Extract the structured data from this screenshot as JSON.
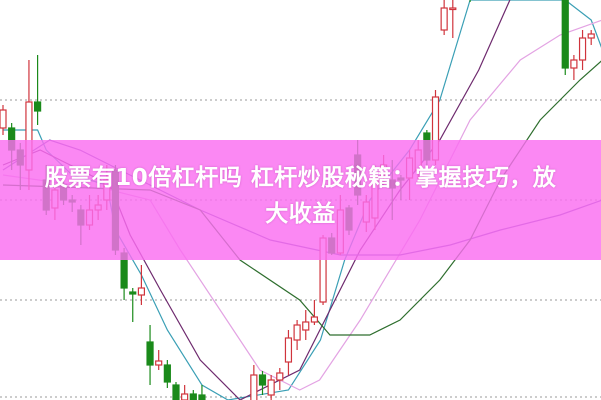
{
  "headline": {
    "line1": "股票有10倍杠杆吗 杠杆炒股秘籍：掌握技巧，放",
    "line2": "大收益"
  },
  "colors": {
    "up": "#d0343c",
    "down": "#1a8a1a",
    "banner": "#fa6ef0",
    "grid": "#999999"
  },
  "chart_data": {
    "type": "candlestick",
    "title": "",
    "xlabel": "",
    "ylabel": "",
    "ylim": [
      0,
      40
    ],
    "grid": true,
    "grid_levels": [
      10,
      20,
      30
    ],
    "candles": [
      [
        0,
        27.2,
        29.0,
        29.5,
        26.5
      ],
      [
        1,
        27.2,
        25.0,
        27.7,
        23.0
      ],
      [
        2,
        25.0,
        23.5,
        25.7,
        21.0
      ],
      [
        3,
        23.0,
        29.8,
        34.0,
        21.0
      ],
      [
        4,
        29.8,
        28.9,
        34.5,
        27.5
      ],
      [
        5,
        22.0,
        19.0,
        23.5,
        18.5
      ],
      [
        6,
        19.2,
        21.0,
        21.5,
        18.0
      ],
      [
        7,
        21.5,
        20.0,
        22.0,
        19.5
      ],
      [
        8,
        20.0,
        19.8,
        20.5,
        18.8
      ],
      [
        9,
        19.0,
        17.5,
        19.5,
        15.5
      ],
      [
        10,
        17.5,
        19.0,
        20.5,
        17.0
      ],
      [
        11,
        19.0,
        19.5,
        20.5,
        18.0
      ],
      [
        12,
        20.0,
        22.0,
        23.5,
        19.0
      ],
      [
        13,
        23.0,
        15.0,
        23.5,
        14.5
      ],
      [
        14,
        14.7,
        11.2,
        15.2,
        10.0
      ],
      [
        15,
        10.8,
        10.6,
        11.2,
        7.8
      ],
      [
        16,
        10.5,
        11.2,
        13.5,
        9.5
      ],
      [
        17,
        5.8,
        3.5,
        7.5,
        1.5
      ],
      [
        18,
        3.5,
        3.9,
        5.0,
        3.0
      ],
      [
        19,
        3.5,
        1.8,
        4.0,
        1.2
      ],
      [
        20,
        1.5,
        0.0,
        1.8,
        -1
      ],
      [
        21,
        0.0,
        0.6,
        1.5,
        -1
      ],
      [
        22,
        0.6,
        0.0,
        1.0,
        -1
      ],
      [
        23,
        0.5,
        -0.5,
        1.5,
        -1
      ],
      [
        29,
        -0.5,
        2.5,
        3.5,
        -1
      ],
      [
        30,
        2.5,
        1.5,
        2.9,
        0.5
      ],
      [
        31,
        0.5,
        2.0,
        2.5,
        0.0
      ],
      [
        32,
        2.0,
        2.7,
        3.2,
        1.0
      ],
      [
        33,
        3.8,
        6.2,
        7.0,
        2.5
      ],
      [
        34,
        6.0,
        7.5,
        8.0,
        5.0
      ],
      [
        35,
        7.0,
        7.8,
        9.0,
        6.0
      ],
      [
        36,
        7.8,
        8.3,
        10.0,
        7.5
      ],
      [
        37,
        9.8,
        16.2,
        16.5,
        9.5
      ],
      [
        38,
        16.2,
        14.7,
        16.7,
        14.5
      ],
      [
        39,
        14.7,
        19.0,
        20.5,
        14.5
      ],
      [
        40,
        19.2,
        17.0,
        19.5,
        16.5
      ],
      [
        41,
        24.5,
        20.5,
        26.0,
        19.5
      ],
      [
        42,
        17.8,
        19.8,
        20.5,
        16.8
      ],
      [
        43,
        18.2,
        22.2,
        23.5,
        17.0
      ],
      [
        44,
        22.5,
        23.5,
        24.5,
        21.5
      ],
      [
        45,
        22.0,
        21.2,
        24.0,
        18.0
      ],
      [
        46,
        22.2,
        22.0,
        22.5,
        20.0
      ],
      [
        47,
        22.2,
        24.2,
        25.0,
        20.0
      ],
      [
        48,
        23.0,
        25.0,
        26.0,
        22.0
      ],
      [
        49,
        26.7,
        24.0,
        27.0,
        23.0
      ],
      [
        50,
        24.0,
        30.3,
        31.0,
        23.5
      ],
      [
        51,
        37.0,
        39.2,
        40.5,
        36.5
      ],
      [
        52,
        39.2,
        39.2,
        40.5,
        36.2
      ],
      [
        54,
        41.0,
        40.5,
        41.5,
        39.8
      ],
      [
        57,
        41.0,
        40.6,
        41.5,
        40.0
      ],
      [
        65,
        40.5,
        33.2,
        41.0,
        32.5
      ],
      [
        66,
        33.2,
        34.0,
        34.5,
        32.0
      ],
      [
        67,
        34.0,
        36.2,
        37.0,
        33.0
      ],
      [
        68,
        36.2,
        36.6,
        37.0,
        35.5
      ]
    ],
    "moving_averages": [
      {
        "color": "#3a9fb5",
        "points": [
          [
            0,
            27
          ],
          [
            4,
            27
          ],
          [
            5,
            25
          ],
          [
            8,
            22.5
          ],
          [
            12,
            21.5
          ],
          [
            13,
            17
          ],
          [
            16,
            12.5
          ],
          [
            19,
            7
          ],
          [
            23,
            1.5
          ],
          [
            26,
            0
          ],
          [
            33,
            1
          ],
          [
            36.7,
            6
          ],
          [
            39.5,
            14
          ],
          [
            42.4,
            20
          ],
          [
            47,
            25
          ],
          [
            50.5,
            30
          ],
          [
            54,
            40
          ],
          [
            65,
            40
          ],
          [
            68,
            38
          ],
          [
            69.3,
            35
          ]
        ]
      },
      {
        "color": "#6e2a6e",
        "points": [
          [
            0,
            23.5
          ],
          [
            4.3,
            25
          ],
          [
            6.6,
            24
          ],
          [
            12.4,
            21.5
          ],
          [
            14.7,
            16.5
          ],
          [
            18.2,
            11
          ],
          [
            22.8,
            4
          ],
          [
            27.4,
            0
          ],
          [
            34.3,
            3
          ],
          [
            37.8,
            9
          ],
          [
            41.3,
            15
          ],
          [
            45.9,
            21
          ],
          [
            50.5,
            26
          ],
          [
            55,
            33
          ],
          [
            58.6,
            40
          ]
        ]
      },
      {
        "color": "#e3a3e3",
        "points": [
          [
            0,
            22.5
          ],
          [
            12.4,
            21
          ],
          [
            17,
            20
          ],
          [
            20.5,
            15
          ],
          [
            25.1,
            9
          ],
          [
            29.7,
            3
          ],
          [
            34.3,
            1
          ],
          [
            36.6,
            2
          ],
          [
            41.3,
            8
          ],
          [
            48.2,
            18
          ],
          [
            54,
            28
          ],
          [
            59.8,
            34
          ],
          [
            64.4,
            36.5
          ],
          [
            69.3,
            38
          ]
        ]
      },
      {
        "color": "#7a5ab4",
        "points": [
          [
            0,
            23
          ],
          [
            5.4,
            26
          ],
          [
            8.9,
            25
          ],
          [
            17,
            21.5
          ],
          [
            22.8,
            19
          ],
          [
            30.9,
            16
          ],
          [
            39,
            14.5
          ],
          [
            45.9,
            14.5
          ],
          [
            51.7,
            15.5
          ],
          [
            57.5,
            17
          ],
          [
            64.4,
            18.5
          ],
          [
            69.3,
            20
          ]
        ]
      },
      {
        "color": "#2e6e2e",
        "points": [
          [
            0,
            21.5
          ],
          [
            17,
            21
          ],
          [
            22.8,
            19
          ],
          [
            27.4,
            14
          ],
          [
            34.3,
            10
          ],
          [
            37.8,
            6.5
          ],
          [
            42.4,
            6.5
          ],
          [
            45.9,
            8
          ],
          [
            50.5,
            12
          ],
          [
            54,
            16
          ],
          [
            57.5,
            22
          ],
          [
            62.1,
            28
          ],
          [
            66.7,
            32
          ],
          [
            69.3,
            34
          ]
        ]
      }
    ]
  }
}
